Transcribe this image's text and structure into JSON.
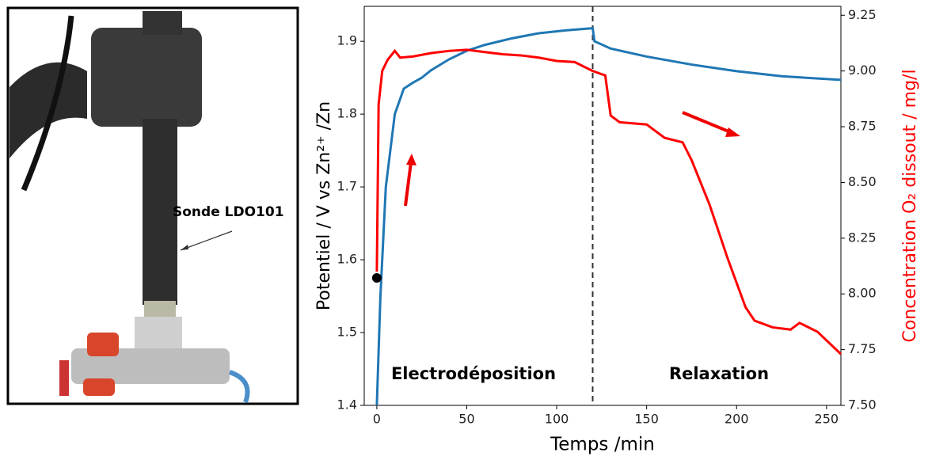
{
  "photo": {
    "label": "Sonde LDO101"
  },
  "chart_data": {
    "type": "line",
    "xlabel": "Temps /min",
    "ylabel": "Potentiel / V vs Zn²⁺ /Zn",
    "y2label": "Concentration O₂ dissout  / mg/l",
    "annotations": [
      "Electrodéposition",
      "Relaxation"
    ],
    "xlim": [
      -7,
      258
    ],
    "xticks": [
      0,
      50,
      100,
      150,
      200,
      250
    ],
    "ylim": [
      1.4,
      1.948
    ],
    "yticks": [
      1.4,
      1.5,
      1.6,
      1.7,
      1.8,
      1.9
    ],
    "y2lim": [
      7.5,
      9.29
    ],
    "y2ticks": [
      {
        "value": 7.5,
        "label": "7.50"
      },
      {
        "value": 7.75,
        "label": "7.75"
      },
      {
        "value": 8.0,
        "label": "8.00"
      },
      {
        "value": 8.25,
        "label": "8.25"
      },
      {
        "value": 8.5,
        "label": "8.50"
      },
      {
        "value": 8.75,
        "label": "8.75"
      },
      {
        "value": 9.0,
        "label": "9.00"
      },
      {
        "value": 9.25,
        "label": "9.25"
      }
    ],
    "vline": 120,
    "marker": {
      "x": 0,
      "y": 1.575,
      "color": "#000000"
    },
    "series": [
      {
        "color": "#1f77b4",
        "axis": "y",
        "x": [
          0,
          2,
          5,
          10,
          15,
          20,
          25,
          30,
          40,
          50,
          60,
          75,
          90,
          105,
          120,
          121,
          130,
          150,
          175,
          200,
          225,
          258
        ],
        "values": [
          1.4,
          1.55,
          1.7,
          1.8,
          1.835,
          1.843,
          1.85,
          1.86,
          1.875,
          1.887,
          1.895,
          1.904,
          1.911,
          1.915,
          1.918,
          1.9,
          1.89,
          1.879,
          1.868,
          1.859,
          1.852,
          1.847
        ]
      },
      {
        "color": "#ff0000",
        "axis": "y2",
        "x": [
          0,
          1,
          3,
          6,
          10,
          13,
          20,
          30,
          40,
          50,
          60,
          70,
          80,
          90,
          100,
          110,
          115,
          120,
          127,
          130,
          135,
          150,
          155,
          160,
          170,
          175,
          185,
          195,
          205,
          210,
          220,
          230,
          235,
          245,
          258
        ],
        "values": [
          8.1,
          8.85,
          9.0,
          9.05,
          9.09,
          9.06,
          9.065,
          9.08,
          9.09,
          9.095,
          9.085,
          9.075,
          9.07,
          9.06,
          9.045,
          9.04,
          9.02,
          9.0,
          8.98,
          8.8,
          8.77,
          8.76,
          8.73,
          8.7,
          8.68,
          8.6,
          8.4,
          8.16,
          7.94,
          7.88,
          7.85,
          7.84,
          7.87,
          7.83,
          7.73
        ]
      }
    ]
  }
}
